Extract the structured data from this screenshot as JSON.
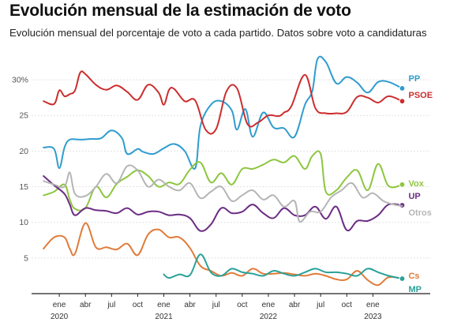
{
  "header": {
    "title": "Evolución mensual de la estimación de voto",
    "subtitle": "Evolución mensual del porcentaje de voto a cada partido. Datos sobre voto a candidaturas"
  },
  "chart_data": {
    "type": "line",
    "title": "Evolución mensual de la estimación de voto",
    "subtitle": "Evolución mensual del porcentaje de voto a cada partido. Datos sobre voto a candidaturas",
    "xlabel": "",
    "ylabel": "",
    "ylim": [
      0,
      33
    ],
    "xlim": [
      2019.75,
      2023.45
    ],
    "grid": true,
    "y_ticks": [
      {
        "value": 30,
        "label": "30%"
      },
      {
        "value": 25,
        "label": "25"
      },
      {
        "value": 20,
        "label": "20"
      },
      {
        "value": 15,
        "label": "15"
      },
      {
        "value": 10,
        "label": "10"
      },
      {
        "value": 5,
        "label": "5"
      }
    ],
    "x_ticks": [
      {
        "value": 2020.0,
        "label": "ene",
        "year": "2020"
      },
      {
        "value": 2020.25,
        "label": "abr",
        "year": ""
      },
      {
        "value": 2020.5,
        "label": "jul",
        "year": ""
      },
      {
        "value": 2020.75,
        "label": "oct",
        "year": ""
      },
      {
        "value": 2021.0,
        "label": "ene",
        "year": "2021"
      },
      {
        "value": 2021.25,
        "label": "abr",
        "year": ""
      },
      {
        "value": 2021.5,
        "label": "jul",
        "year": ""
      },
      {
        "value": 2021.75,
        "label": "oct",
        "year": ""
      },
      {
        "value": 2022.0,
        "label": "ene",
        "year": "2022"
      },
      {
        "value": 2022.25,
        "label": "abr",
        "year": ""
      },
      {
        "value": 2022.5,
        "label": "jul",
        "year": ""
      },
      {
        "value": 2022.75,
        "label": "oct",
        "year": ""
      },
      {
        "value": 2023.0,
        "label": "ene",
        "year": "2023"
      }
    ],
    "series": [
      {
        "name": "PP",
        "color": "#2f9ccf",
        "dot": true,
        "x": [
          2019.85,
          2019.95,
          2020.0,
          2020.05,
          2020.1,
          2020.2,
          2020.3,
          2020.4,
          2020.5,
          2020.6,
          2020.65,
          2020.75,
          2020.8,
          2020.9,
          2021.0,
          2021.1,
          2021.2,
          2021.3,
          2021.35,
          2021.45,
          2021.55,
          2021.65,
          2021.7,
          2021.78,
          2021.85,
          2021.95,
          2022.05,
          2022.15,
          2022.25,
          2022.35,
          2022.42,
          2022.47,
          2022.55,
          2022.65,
          2022.75,
          2022.85,
          2022.95,
          2023.05,
          2023.15,
          2023.28
        ],
        "y": [
          20.5,
          20.3,
          17.6,
          20.5,
          21.6,
          21.6,
          21.7,
          21.8,
          22.9,
          21.8,
          19.6,
          20.3,
          19.9,
          19.6,
          20.4,
          21.0,
          20.0,
          17.6,
          23.5,
          26.5,
          27.0,
          25.7,
          23.0,
          25.9,
          22.0,
          25.4,
          23.3,
          23.2,
          22.0,
          26.5,
          28.4,
          32.9,
          32.5,
          29.5,
          30.4,
          29.6,
          28.2,
          29.7,
          29.7,
          28.8
        ]
      },
      {
        "name": "PSOE",
        "color": "#cc2d2d",
        "dot": true,
        "x": [
          2019.85,
          2019.95,
          2020.0,
          2020.05,
          2020.1,
          2020.15,
          2020.2,
          2020.25,
          2020.35,
          2020.45,
          2020.55,
          2020.65,
          2020.75,
          2020.85,
          2020.95,
          2021.0,
          2021.05,
          2021.1,
          2021.2,
          2021.3,
          2021.4,
          2021.5,
          2021.6,
          2021.7,
          2021.8,
          2021.9,
          2022.0,
          2022.1,
          2022.15,
          2022.22,
          2022.35,
          2022.45,
          2022.55,
          2022.65,
          2022.75,
          2022.85,
          2022.95,
          2023.05,
          2023.15,
          2023.28
        ],
        "y": [
          27.0,
          26.6,
          28.5,
          27.7,
          28.0,
          28.5,
          31.0,
          30.8,
          29.3,
          28.6,
          29.2,
          28.3,
          27.2,
          29.3,
          28.2,
          26.5,
          28.6,
          28.7,
          27.0,
          27.1,
          23.0,
          23.1,
          28.4,
          28.8,
          23.8,
          24.0,
          25.0,
          24.9,
          25.4,
          26.3,
          30.7,
          26.0,
          25.3,
          25.3,
          25.5,
          27.6,
          27.5,
          26.8,
          27.7,
          27.0
        ]
      },
      {
        "name": "Vox",
        "color": "#8dc63f",
        "dot": true,
        "x": [
          2019.85,
          2019.95,
          2020.05,
          2020.1,
          2020.15,
          2020.25,
          2020.35,
          2020.45,
          2020.55,
          2020.65,
          2020.75,
          2020.85,
          2020.95,
          2021.05,
          2021.15,
          2021.25,
          2021.35,
          2021.45,
          2021.55,
          2021.65,
          2021.75,
          2021.85,
          2021.95,
          2022.05,
          2022.15,
          2022.25,
          2022.35,
          2022.42,
          2022.5,
          2022.55,
          2022.65,
          2022.75,
          2022.85,
          2022.95,
          2023.05,
          2023.15,
          2023.28
        ],
        "y": [
          13.8,
          14.3,
          15.3,
          13.2,
          11.9,
          12.0,
          15.0,
          13.5,
          15.4,
          16.4,
          17.3,
          16.5,
          15.0,
          15.6,
          15.4,
          17.4,
          18.4,
          15.6,
          16.9,
          15.3,
          17.5,
          17.5,
          18.1,
          18.8,
          18.4,
          19.3,
          17.5,
          19.3,
          19.6,
          14.3,
          14.5,
          16.3,
          17.3,
          14.5,
          18.2,
          15.1,
          15.3
        ]
      },
      {
        "name": "UP",
        "color": "#6b2d84",
        "dot": true,
        "x": [
          2019.85,
          2019.95,
          2020.05,
          2020.1,
          2020.15,
          2020.25,
          2020.35,
          2020.45,
          2020.55,
          2020.65,
          2020.75,
          2020.85,
          2020.95,
          2021.05,
          2021.15,
          2021.25,
          2021.35,
          2021.45,
          2021.55,
          2021.65,
          2021.75,
          2021.85,
          2021.95,
          2022.05,
          2022.15,
          2022.25,
          2022.35,
          2022.45,
          2022.55,
          2022.65,
          2022.75,
          2022.85,
          2022.95,
          2023.05,
          2023.15,
          2023.28
        ],
        "y": [
          16.5,
          15.2,
          14.0,
          12.5,
          11.0,
          12.0,
          11.7,
          11.6,
          11.3,
          12.0,
          11.1,
          11.5,
          11.5,
          11.0,
          11.1,
          10.6,
          8.8,
          9.7,
          12.0,
          11.3,
          11.5,
          12.5,
          11.3,
          10.6,
          12.0,
          11.0,
          11.0,
          12.2,
          10.5,
          12.2,
          8.9,
          10.2,
          10.2,
          11.0,
          12.5,
          12.4
        ]
      },
      {
        "name": "Otros",
        "color": "#b5b5b5",
        "dot": false,
        "x": [
          2019.85,
          2019.95,
          2020.05,
          2020.1,
          2020.15,
          2020.25,
          2020.35,
          2020.45,
          2020.55,
          2020.65,
          2020.75,
          2020.85,
          2020.95,
          2021.05,
          2021.15,
          2021.25,
          2021.35,
          2021.45,
          2021.55,
          2021.65,
          2021.75,
          2021.85,
          2021.95,
          2022.05,
          2022.15,
          2022.25,
          2022.3,
          2022.4,
          2022.5,
          2022.6,
          2022.7,
          2022.8,
          2022.9,
          2023.0,
          2023.1,
          2023.2,
          2023.28
        ],
        "y": [
          15.8,
          15.3,
          15.0,
          17.0,
          14.0,
          13.7,
          15.0,
          16.8,
          15.5,
          17.9,
          17.3,
          15.0,
          16.0,
          15.0,
          14.5,
          15.5,
          13.4,
          14.3,
          15.0,
          13.0,
          13.8,
          14.5,
          13.2,
          13.8,
          12.2,
          13.0,
          10.1,
          11.5,
          11.5,
          13.5,
          14.5,
          15.5,
          13.5,
          14.1,
          13.0,
          12.5,
          12.3
        ]
      },
      {
        "name": "Cs",
        "color": "#e07b39",
        "dot": true,
        "x": [
          2019.85,
          2019.95,
          2020.05,
          2020.1,
          2020.15,
          2020.25,
          2020.35,
          2020.45,
          2020.55,
          2020.65,
          2020.75,
          2020.85,
          2020.95,
          2021.05,
          2021.15,
          2021.25,
          2021.35,
          2021.45,
          2021.55,
          2021.65,
          2021.75,
          2021.85,
          2021.95,
          2022.05,
          2022.15,
          2022.25,
          2022.35,
          2022.45,
          2022.55,
          2022.65,
          2022.75,
          2022.85,
          2022.95,
          2023.05,
          2023.15,
          2023.28
        ],
        "y": [
          6.3,
          7.9,
          7.9,
          6.3,
          5.6,
          9.9,
          6.5,
          6.5,
          6.2,
          7.0,
          5.4,
          8.3,
          9.0,
          7.9,
          7.9,
          6.4,
          3.9,
          3.2,
          2.5,
          2.9,
          2.5,
          3.5,
          2.8,
          2.8,
          2.9,
          2.7,
          2.5,
          2.8,
          2.5,
          2.0,
          2.0,
          3.2,
          1.9,
          1.2,
          2.3,
          2.1
        ]
      },
      {
        "name": "MP",
        "color": "#2aa198",
        "dot": true,
        "x": [
          2021.0,
          2021.05,
          2021.15,
          2021.25,
          2021.35,
          2021.45,
          2021.55,
          2021.65,
          2021.75,
          2021.85,
          2021.95,
          2022.05,
          2022.15,
          2022.25,
          2022.35,
          2022.45,
          2022.55,
          2022.65,
          2022.75,
          2022.85,
          2022.95,
          2023.05,
          2023.15,
          2023.28
        ],
        "y": [
          2.7,
          2.2,
          2.7,
          2.6,
          5.5,
          3.0,
          2.5,
          3.5,
          3.0,
          2.8,
          2.5,
          3.2,
          2.8,
          2.5,
          3.0,
          3.5,
          3.0,
          3.0,
          2.8,
          2.5,
          3.5,
          3.0,
          2.5,
          2.1
        ]
      }
    ]
  }
}
